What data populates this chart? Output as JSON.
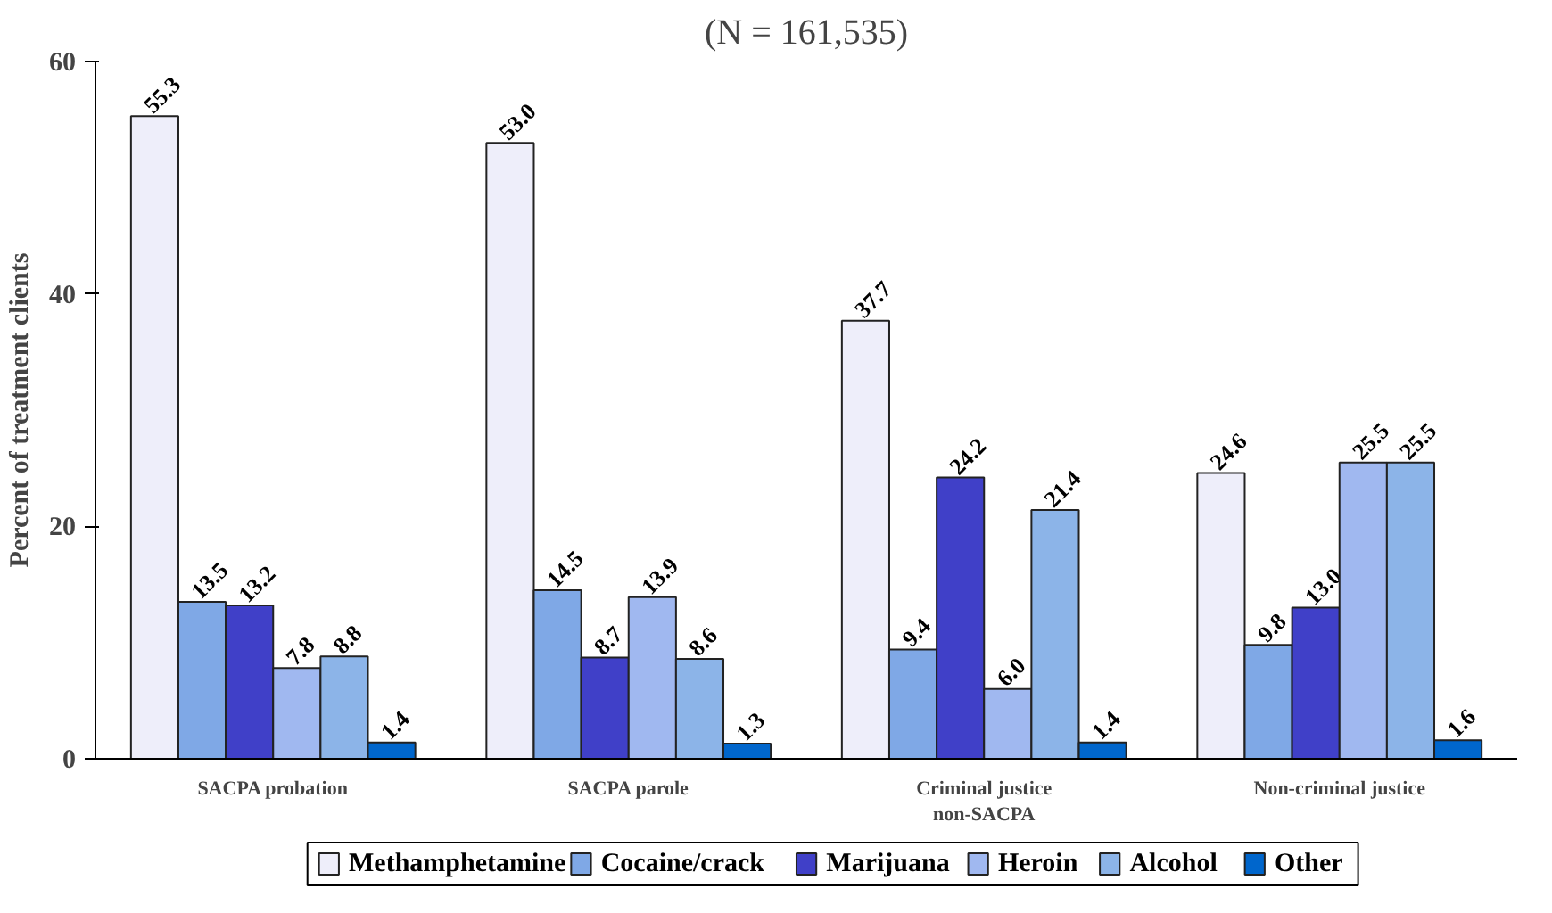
{
  "chart_data": {
    "type": "bar",
    "title": "(N = 161,535)",
    "ylabel": "Percent of treatment clients",
    "categories": [
      "SACPA probation",
      "SACPA parole",
      "Criminal justice\nnon-SACPA",
      "Non-criminal justice"
    ],
    "series": [
      {
        "name": "Methamphetamine",
        "color": "#eeeefa",
        "values": [
          55.3,
          53.0,
          37.7,
          24.6
        ],
        "value_labels": [
          "55.3",
          "53.0",
          "37.7",
          "24.6"
        ]
      },
      {
        "name": "Cocaine/crack",
        "color": "#7fa8e6",
        "values": [
          13.5,
          14.5,
          9.4,
          9.8
        ],
        "value_labels": [
          "13.5",
          "14.5",
          "9.4",
          "9.8"
        ]
      },
      {
        "name": "Marijuana",
        "color": "#4040c8",
        "values": [
          13.2,
          8.7,
          24.2,
          13.0
        ],
        "value_labels": [
          "13.2",
          "8.7",
          "24.2",
          "13.0"
        ]
      },
      {
        "name": "Heroin",
        "color": "#a0b8f0",
        "values": [
          7.8,
          13.9,
          6.0,
          25.5
        ],
        "value_labels": [
          "7.8",
          "13.9",
          "6.0",
          "25.5"
        ]
      },
      {
        "name": "Alcohol",
        "color": "#8cb4e8",
        "values": [
          8.8,
          8.6,
          21.4,
          25.5
        ],
        "value_labels": [
          "8.8",
          "8.6",
          "21.4",
          "25.5"
        ]
      },
      {
        "name": "Other",
        "color": "#0066cc",
        "values": [
          1.4,
          1.3,
          1.4,
          1.6
        ],
        "value_labels": [
          "1.4",
          "1.3",
          "1.4",
          "1.6"
        ]
      }
    ],
    "ylim": [
      0,
      60
    ],
    "yticks": [
      0,
      20,
      40,
      60
    ],
    "grid": false,
    "legend": "bottom"
  }
}
